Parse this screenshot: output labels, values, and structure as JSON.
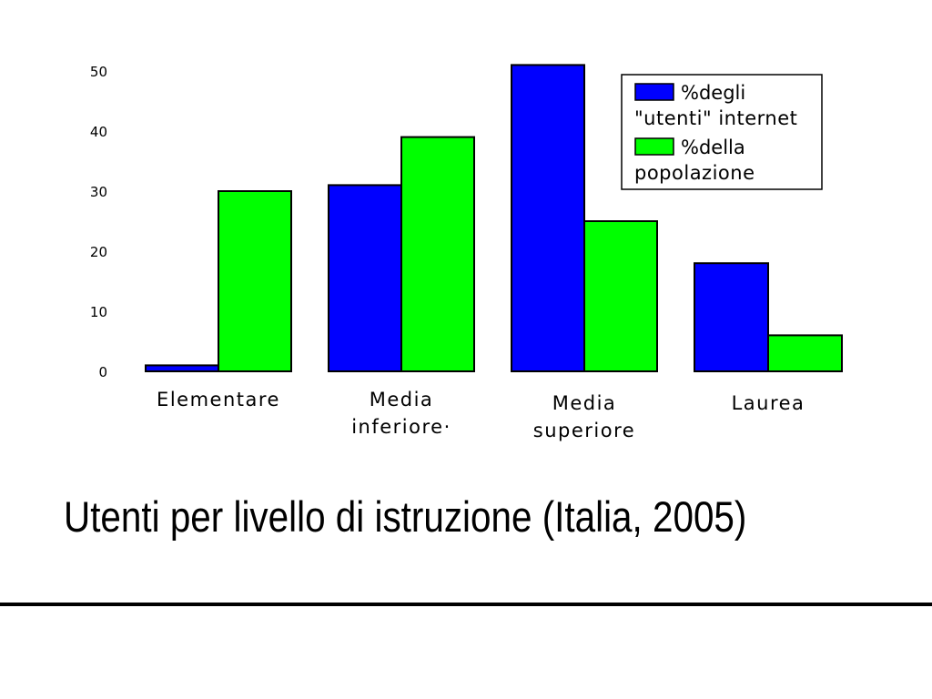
{
  "chart_data": {
    "type": "bar",
    "categories": [
      [
        "Elementare"
      ],
      [
        "Media",
        "inferiore·"
      ],
      [
        "Media",
        "superiore"
      ],
      [
        "Laurea"
      ]
    ],
    "series": [
      {
        "name": [
          "%degli",
          "\"utenti\" internet"
        ],
        "color": "#0000ff",
        "values": [
          1,
          31,
          51,
          18
        ]
      },
      {
        "name": [
          "%della",
          "popolazione"
        ],
        "color": "#00ff00",
        "values": [
          30,
          39,
          25,
          6
        ]
      }
    ],
    "ylim": [
      0,
      50
    ],
    "yticks": [
      "0",
      "10",
      "20",
      "30",
      "40",
      "50"
    ],
    "grid": false,
    "legend_position": "top-right"
  },
  "slide": {
    "title": "Utenti per livello di istruzione (Italia, 2005)"
  }
}
